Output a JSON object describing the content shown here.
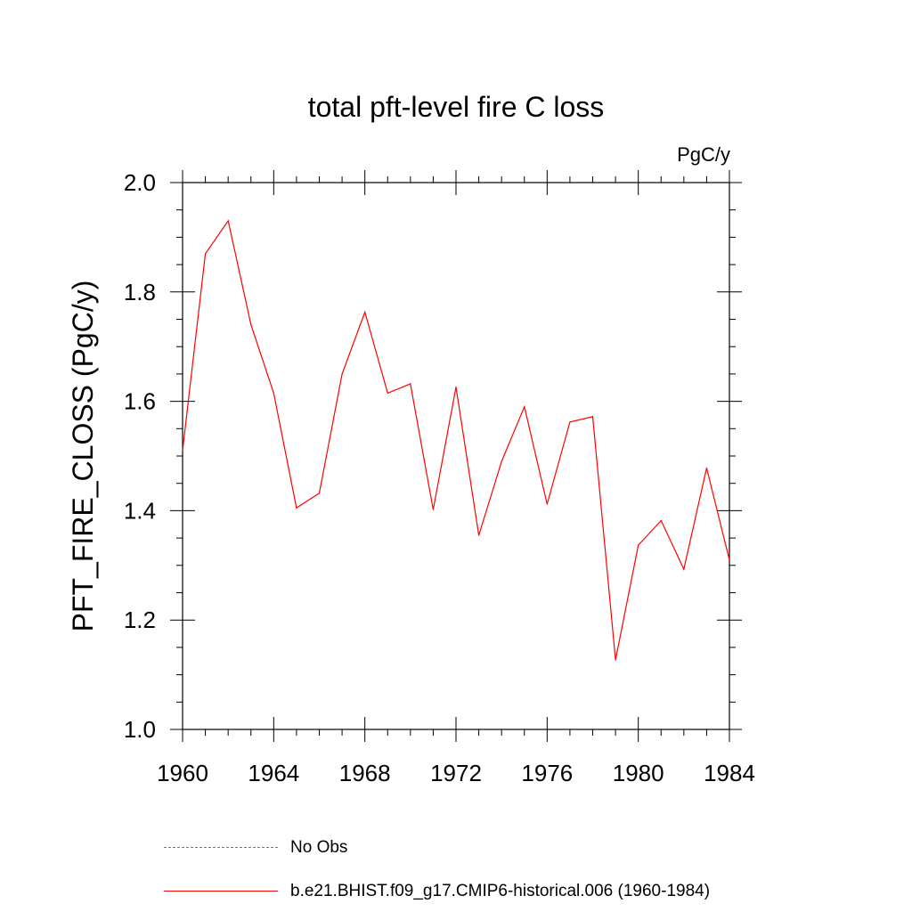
{
  "chart_data": {
    "type": "line",
    "title": "total pft-level fire C loss",
    "units": "PgC/y",
    "ylabel": "PFT_FIRE_CLOSS  (PgC/y)",
    "xlabel": "",
    "xlim": [
      1960,
      1984
    ],
    "ylim": [
      1.0,
      2.0
    ],
    "x_ticks": [
      1960,
      1964,
      1968,
      1972,
      1976,
      1980,
      1984
    ],
    "y_ticks": [
      1.0,
      1.2,
      1.4,
      1.6,
      1.8,
      2.0
    ],
    "y_tick_labels": [
      "1.0",
      "1.2",
      "1.4",
      "1.6",
      "1.8",
      "2.0"
    ],
    "grid": false,
    "legend_position": "bottom",
    "series": [
      {
        "name": "b.e21.BHIST.f09_g17.CMIP6-historical.006 (1960-1984)",
        "color": "#ff0000",
        "style": "solid",
        "x": [
          1960,
          1961,
          1962,
          1963,
          1964,
          1965,
          1966,
          1967,
          1968,
          1969,
          1970,
          1971,
          1972,
          1973,
          1974,
          1975,
          1976,
          1977,
          1978,
          1979,
          1980,
          1981,
          1982,
          1983,
          1984
        ],
        "values": [
          1.51,
          1.87,
          1.93,
          1.74,
          1.615,
          1.405,
          1.432,
          1.65,
          1.763,
          1.615,
          1.632,
          1.402,
          1.626,
          1.355,
          1.49,
          1.59,
          1.412,
          1.562,
          1.572,
          1.127,
          1.337,
          1.382,
          1.293,
          1.478,
          1.31
        ]
      }
    ]
  },
  "legend": {
    "obs_label": "No Obs",
    "obs_color": "#6a6acd",
    "model_label": "b.e21.BHIST.f09_g17.CMIP6-historical.006 (1960-1984)",
    "model_color": "#ff0000"
  }
}
